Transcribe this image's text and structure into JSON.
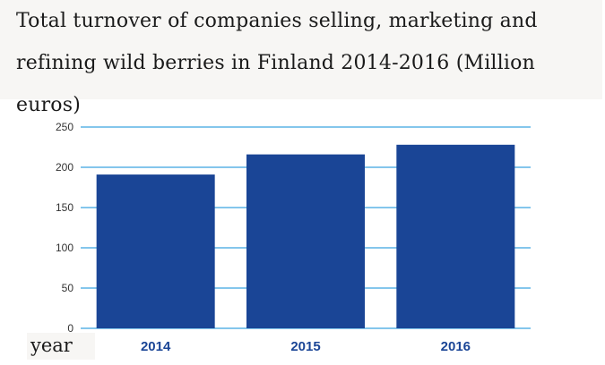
{
  "chart_data": {
    "type": "bar",
    "title": "Total turnover of companies selling, marketing and refining wild berries in Finland 2014-2016 (Million euros)",
    "xlabel": "year",
    "ylabel": "",
    "categories": [
      "2014",
      "2015",
      "2016"
    ],
    "values": [
      191,
      216,
      228
    ],
    "ylim": [
      0,
      250
    ],
    "yticks": [
      "0",
      "50",
      "100",
      "150",
      "200",
      "250"
    ],
    "grid": true,
    "legend": "none",
    "colors": {
      "bar": "#1a4596",
      "grid": "#5bb3e6",
      "xtick": "#1a4596"
    }
  }
}
